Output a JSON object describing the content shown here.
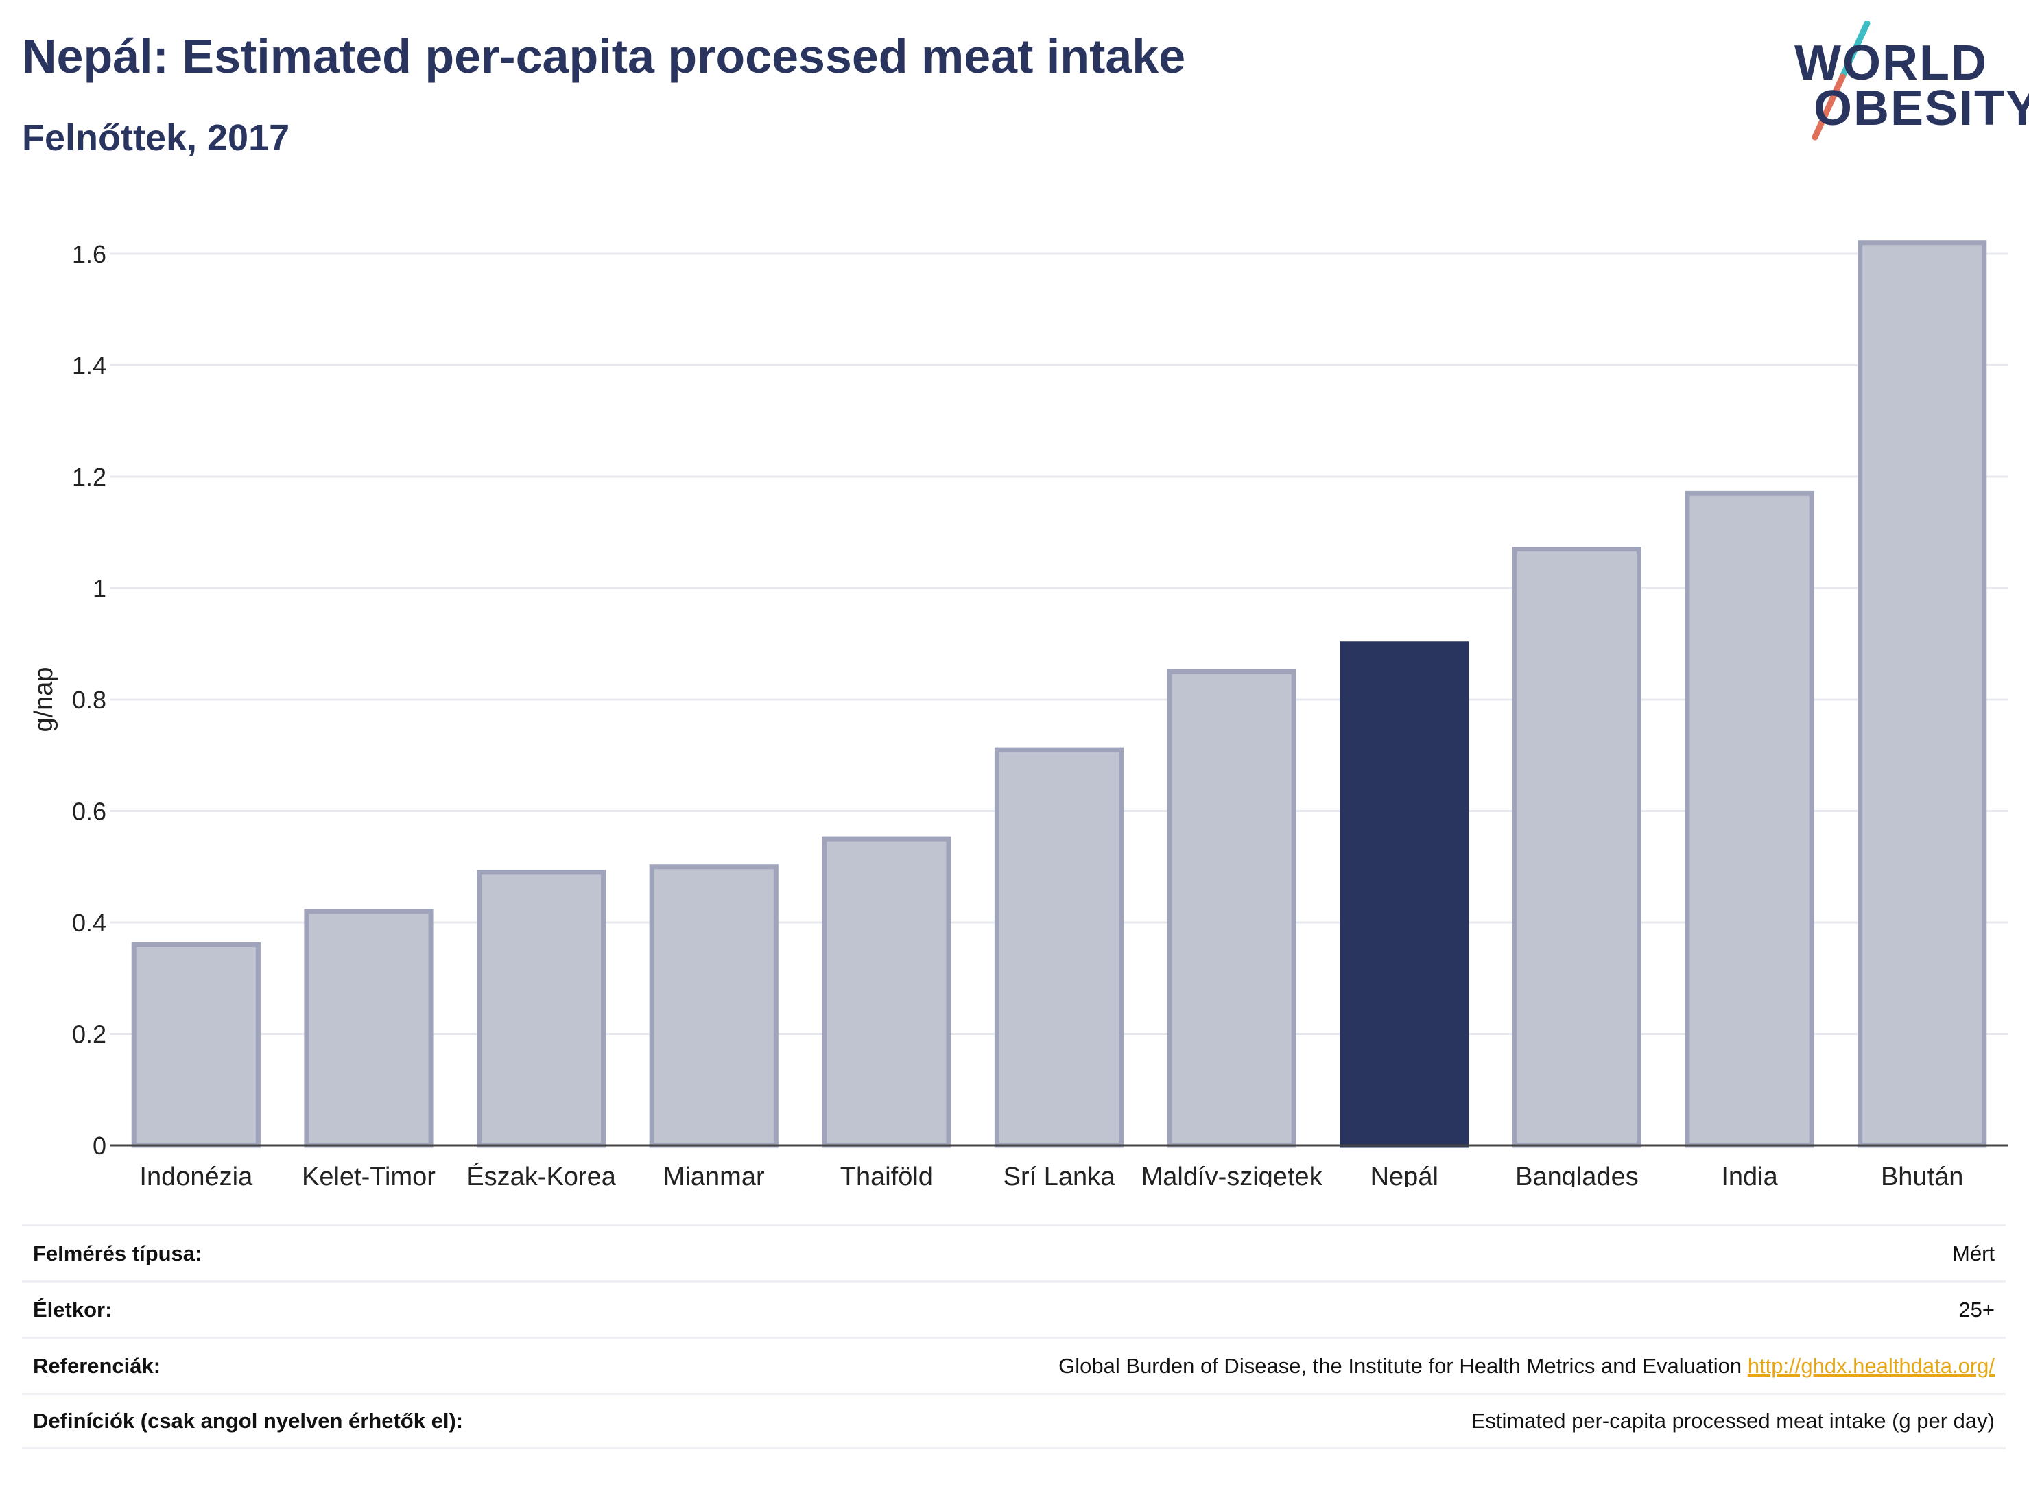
{
  "header": {
    "title": "Nepál: Estimated per-capita processed meat intake",
    "subtitle": "Felnőttek, 2017"
  },
  "logo": {
    "line1": "WORLD",
    "line2": "OBESITY",
    "colors": {
      "text": "#2a355f",
      "slash_top": "#3cbcc3",
      "slash_bottom": "#e0705a"
    }
  },
  "chart_data": {
    "type": "bar",
    "title": "Nepál: Estimated per-capita processed meat intake",
    "subtitle": "Felnőttek, 2017",
    "xlabel": "",
    "ylabel": "g/nap",
    "ylim": [
      0,
      1.6
    ],
    "yticks": [
      "0",
      "0.2",
      "0.4",
      "0.6",
      "0.8",
      "1",
      "1.2",
      "1.4",
      "1.6"
    ],
    "ytick_values": [
      0,
      0.2,
      0.4,
      0.6,
      0.8,
      1,
      1.2,
      1.4,
      1.6
    ],
    "grid": true,
    "categories": [
      "Indonézia",
      "Kelet-Timor",
      "Észak-Korea",
      "Mianmar",
      "Thaiföld",
      "Srí Lanka",
      "Maldív-szigetek",
      "Nepál",
      "Banglades",
      "India",
      "Bhután"
    ],
    "values": [
      0.36,
      0.42,
      0.49,
      0.5,
      0.55,
      0.71,
      0.85,
      0.9,
      1.07,
      1.17,
      1.62
    ],
    "highlight": "Nepál",
    "colors": {
      "bar": "#c0c3d0",
      "bar_border": "#9fa4bb",
      "highlight": "#2a355f",
      "grid": "#e6e8ee",
      "axis": "#444444"
    }
  },
  "info": {
    "survey_type_label": "Felmérés típusa:",
    "survey_type_value": "Mért",
    "age_label": "Életkor:",
    "age_value": "25+",
    "references_label": "Referenciák:",
    "references_value": "Global Burden of Disease, the Institute for Health Metrics and Evaluation",
    "references_link": "http://ghdx.healthdata.org/",
    "definitions_label": "Definíciók (csak angol nyelven érhetők el):",
    "definitions_value": "Estimated per-capita processed meat intake (g per day)"
  }
}
